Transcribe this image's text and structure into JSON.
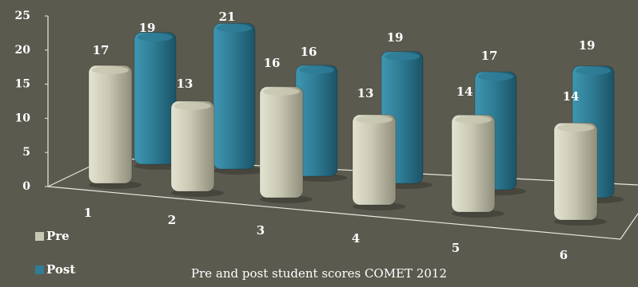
{
  "chart_data": {
    "type": "bar",
    "title": "Pre and post student scores COMET 2012",
    "categories": [
      "1",
      "2",
      "3",
      "4",
      "5",
      "6"
    ],
    "series": [
      {
        "name": "Pre",
        "values": [
          17,
          13,
          16,
          13,
          14,
          14
        ]
      },
      {
        "name": "Post",
        "values": [
          19,
          21,
          16,
          19,
          17,
          19
        ]
      }
    ],
    "ylim": [
      0,
      25
    ],
    "yticks": [
      "0",
      "5",
      "10",
      "15",
      "20",
      "25"
    ],
    "grid": false,
    "legend": "bottom-left"
  },
  "colors": {
    "background": "#5b5a4f",
    "pre": "#c9c8b3",
    "post": "#2f7d96",
    "text": "#ffffff"
  }
}
